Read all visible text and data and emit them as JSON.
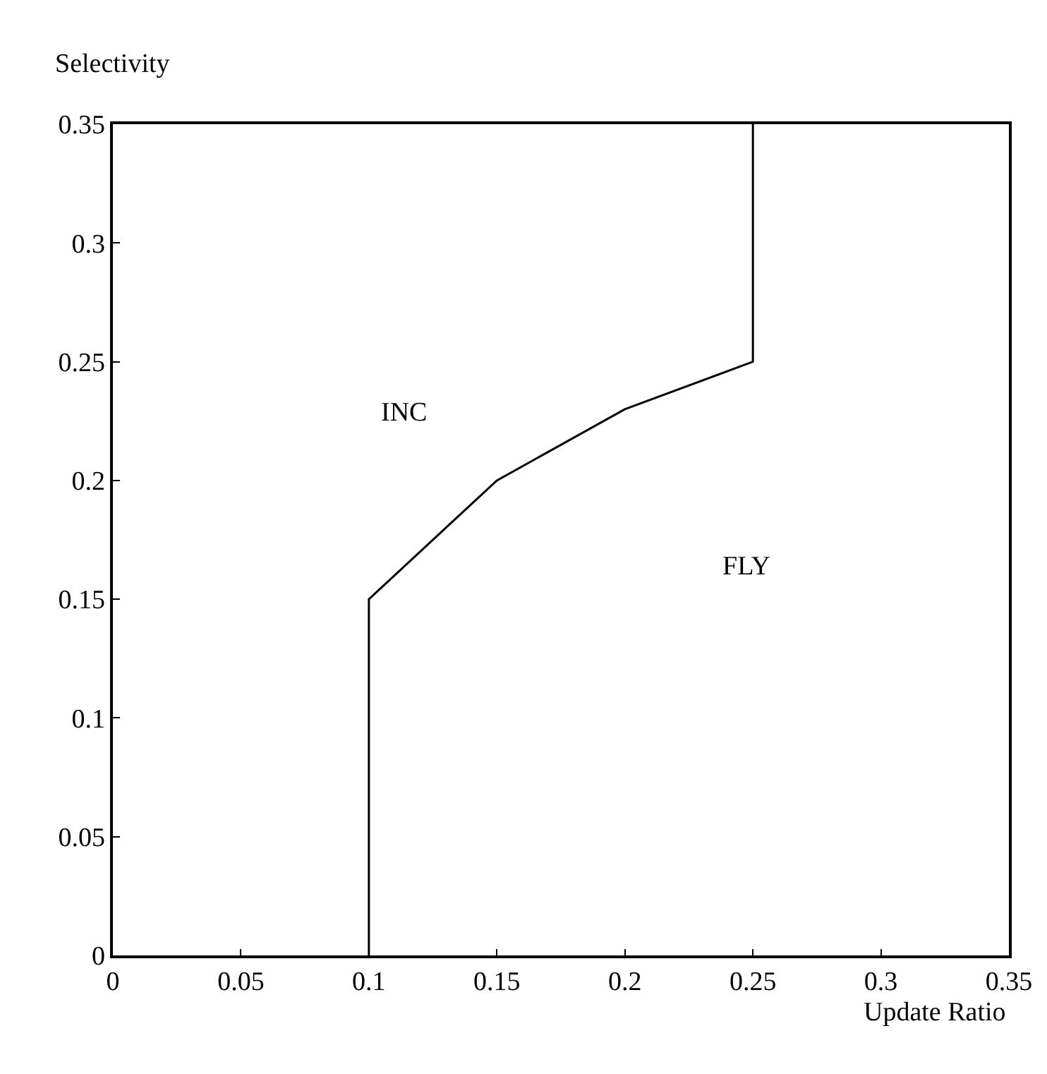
{
  "chart_data": {
    "type": "line",
    "xlabel": "Update Ratio",
    "ylabel": "Selectivity",
    "x": [
      0.1,
      0.1,
      0.13,
      0.15,
      0.2,
      0.25,
      0.25
    ],
    "series": [
      {
        "color": "#000000",
        "values": [
          0,
          0.15,
          0.18,
          0.2,
          0.23,
          0.25,
          0.35
        ]
      }
    ],
    "xlim": [
      0,
      0.35
    ],
    "xticks": [
      0,
      0.05,
      0.1,
      0.15,
      0.2,
      0.25,
      0.3,
      0.35
    ],
    "ylim": [
      0,
      0.35
    ],
    "yticks": [
      0,
      0.05,
      0.1,
      0.15,
      0.2,
      0.25,
      0.3,
      0.35
    ],
    "annotations": [
      "INC",
      "FLY"
    ],
    "grid": false,
    "legend": false,
    "marker": "none",
    "line_style": "solid"
  }
}
